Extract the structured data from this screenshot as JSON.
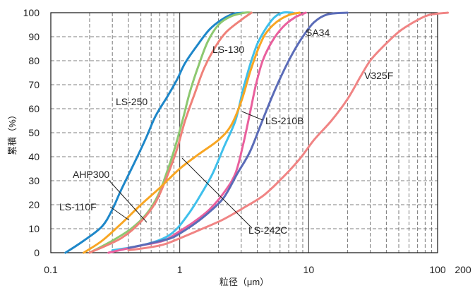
{
  "chart_data": {
    "type": "line",
    "xlabel": "粒径（μm）",
    "ylabel": "累積（%）",
    "x_scale": "log",
    "xlim": [
      0.1,
      200
    ],
    "ylim": [
      0,
      100
    ],
    "grid": true,
    "x_ticks": [
      0.1,
      1,
      10,
      100,
      200
    ],
    "x_tick_labels": [
      "0.1",
      "1",
      "10",
      "100",
      "200"
    ],
    "y_ticks": [
      0,
      10,
      20,
      30,
      40,
      50,
      60,
      70,
      80,
      90,
      100
    ],
    "y_tick_labels": [
      "0",
      "10",
      "20",
      "30",
      "40",
      "50",
      "60",
      "70",
      "80",
      "90",
      "100"
    ],
    "series": [
      {
        "name": "LS-250",
        "color": "#1e87c9",
        "points": [
          [
            0.13,
            0
          ],
          [
            0.18,
            5
          ],
          [
            0.25,
            11
          ],
          [
            0.3,
            18
          ],
          [
            0.35,
            26
          ],
          [
            0.45,
            38
          ],
          [
            0.55,
            48
          ],
          [
            0.65,
            57
          ],
          [
            0.8,
            65
          ],
          [
            0.95,
            72
          ],
          [
            1.1,
            79
          ],
          [
            1.35,
            86
          ],
          [
            1.7,
            93
          ],
          [
            2.1,
            97
          ],
          [
            2.6,
            99.5
          ],
          [
            3.2,
            100
          ]
        ]
      },
      {
        "name": "LS-110F",
        "color": "#8dc870",
        "points": [
          [
            0.2,
            0
          ],
          [
            0.3,
            5
          ],
          [
            0.42,
            10
          ],
          [
            0.55,
            16
          ],
          [
            0.68,
            24
          ],
          [
            0.8,
            34
          ],
          [
            0.92,
            44
          ],
          [
            1.05,
            55
          ],
          [
            1.2,
            67
          ],
          [
            1.4,
            78
          ],
          [
            1.65,
            88
          ],
          [
            2.0,
            95
          ],
          [
            2.5,
            98.5
          ],
          [
            3.2,
            100
          ],
          [
            3.6,
            100
          ]
        ]
      },
      {
        "name": "AHP300",
        "color": "#ef8179",
        "points": [
          [
            0.2,
            0
          ],
          [
            0.35,
            6
          ],
          [
            0.5,
            13
          ],
          [
            0.65,
            21
          ],
          [
            0.8,
            32
          ],
          [
            0.95,
            43
          ],
          [
            1.1,
            55
          ],
          [
            1.3,
            66
          ],
          [
            1.55,
            77
          ],
          [
            1.9,
            86
          ],
          [
            2.3,
            92
          ],
          [
            3.0,
            97
          ],
          [
            3.6,
            100
          ]
        ]
      },
      {
        "name": "LS-130",
        "color": "#3fc0ec",
        "points": [
          [
            0.3,
            1
          ],
          [
            0.5,
            3
          ],
          [
            0.75,
            6
          ],
          [
            0.95,
            10
          ],
          [
            1.2,
            17
          ],
          [
            1.45,
            24
          ],
          [
            1.8,
            33
          ],
          [
            2.2,
            44
          ],
          [
            2.7,
            55
          ],
          [
            3.1,
            68
          ],
          [
            3.5,
            78
          ],
          [
            4.0,
            87
          ],
          [
            4.6,
            93
          ],
          [
            5.4,
            98
          ],
          [
            6.3,
            100
          ],
          [
            7.5,
            100
          ]
        ]
      },
      {
        "name": "LS-210B",
        "color": "#f8a623",
        "points": [
          [
            0.18,
            0
          ],
          [
            0.25,
            5
          ],
          [
            0.35,
            12
          ],
          [
            0.5,
            20
          ],
          [
            0.7,
            27
          ],
          [
            1.0,
            35
          ],
          [
            1.4,
            41
          ],
          [
            2.0,
            47
          ],
          [
            2.5,
            53
          ],
          [
            3.0,
            63
          ],
          [
            3.5,
            75
          ],
          [
            4.0,
            84
          ],
          [
            4.6,
            91
          ],
          [
            5.6,
            96
          ],
          [
            7.0,
            99
          ],
          [
            8.5,
            100
          ]
        ]
      },
      {
        "name": "LS-242C",
        "color": "#e9609d",
        "points": [
          [
            0.28,
            0
          ],
          [
            0.5,
            3
          ],
          [
            0.75,
            5
          ],
          [
            1.0,
            9
          ],
          [
            1.3,
            13
          ],
          [
            1.7,
            18
          ],
          [
            2.2,
            25
          ],
          [
            2.7,
            33
          ],
          [
            3.1,
            45
          ],
          [
            3.5,
            58
          ],
          [
            3.9,
            70
          ],
          [
            4.4,
            80
          ],
          [
            5.2,
            88
          ],
          [
            6.3,
            94
          ],
          [
            7.8,
            98
          ],
          [
            9.5,
            100
          ]
        ]
      },
      {
        "name": "SA34",
        "color": "#5b6cb8",
        "points": [
          [
            0.4,
            2
          ],
          [
            0.6,
            4
          ],
          [
            0.85,
            6
          ],
          [
            1.0,
            8
          ],
          [
            1.3,
            12
          ],
          [
            1.7,
            17
          ],
          [
            2.2,
            23
          ],
          [
            2.8,
            33
          ],
          [
            3.5,
            42
          ],
          [
            4.3,
            54
          ],
          [
            5.2,
            65
          ],
          [
            6.3,
            75
          ],
          [
            7.5,
            83
          ],
          [
            9.0,
            90
          ],
          [
            11,
            96
          ],
          [
            14,
            99.3
          ],
          [
            20,
            100
          ]
        ]
      },
      {
        "name": "V325F",
        "color": "#f08484",
        "points": [
          [
            0.4,
            1
          ],
          [
            0.7,
            3
          ],
          [
            1.0,
            6
          ],
          [
            1.5,
            10
          ],
          [
            2.2,
            14
          ],
          [
            3.2,
            19
          ],
          [
            4.5,
            24
          ],
          [
            6.2,
            31
          ],
          [
            8.5,
            39
          ],
          [
            11,
            47
          ],
          [
            15,
            55
          ],
          [
            20,
            64
          ],
          [
            25,
            73
          ],
          [
            30,
            80
          ],
          [
            38,
            86
          ],
          [
            50,
            92
          ],
          [
            65,
            96
          ],
          [
            85,
            99
          ],
          [
            120,
            100
          ]
        ]
      }
    ],
    "labels": [
      {
        "series": "LS-250",
        "text": "LS-250"
      },
      {
        "series": "LS-110F",
        "text": "LS-110F"
      },
      {
        "series": "AHP300",
        "text": "AHP300"
      },
      {
        "series": "LS-130",
        "text": "LS-130"
      },
      {
        "series": "LS-210B",
        "text": "LS-210B"
      },
      {
        "series": "LS-242C",
        "text": "LS-242C"
      },
      {
        "series": "SA34",
        "text": "SA34"
      },
      {
        "series": "V325F",
        "text": "V325F"
      }
    ]
  }
}
